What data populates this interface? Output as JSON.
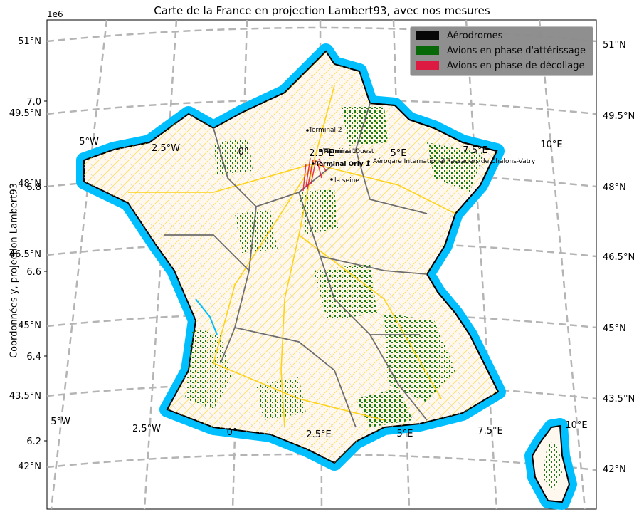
{
  "title": "Carte de la France en projection Lambert93, avec nos mesures",
  "axis": {
    "y_label": "Coordonnées y, projection Lambert93",
    "y_offset": "1e6",
    "y_ticks": [
      "7.0",
      "6.8",
      "6.6",
      "6.4",
      "6.2"
    ]
  },
  "graticule": {
    "lat_labels": [
      "51°N",
      "49.5°N",
      "48°N",
      "46.5°N",
      "45°N",
      "43.5°N",
      "42°N"
    ],
    "lon_labels_top": [
      "5°W",
      "2.5°W",
      "0°",
      "2.5°E",
      "5°E",
      "7.5°E",
      "10°E"
    ],
    "lon_labels_bottom": [
      "5°W",
      "2.5°W",
      "0°",
      "2.5°E",
      "5°E",
      "7.5°E",
      "10°E"
    ]
  },
  "annotations": {
    "terminal_2": "Terminal 2",
    "terminal_1": "Terminal 1",
    "terminal_ouest": "Terminal Ouest",
    "terminal_orly_1": "Terminal Orly 1",
    "chalons": "Aérogare International Passagers de Chalons-Vatry",
    "la_seine": "la seine"
  },
  "legend": {
    "items": [
      {
        "label": "Aérodromes",
        "color": "#000000"
      },
      {
        "label": "Avions en phase d'attérissage",
        "color": "#006400"
      },
      {
        "label": "Avions en phase de décollage",
        "color": "#dc143c"
      }
    ]
  },
  "colors": {
    "coast_buffer": "#00bfff",
    "land": "#fff8ef",
    "forest": "#1a7a1a",
    "roads": "#ffd21a",
    "admin": "#6e6e6e",
    "graticule": "#b4b4b4"
  }
}
